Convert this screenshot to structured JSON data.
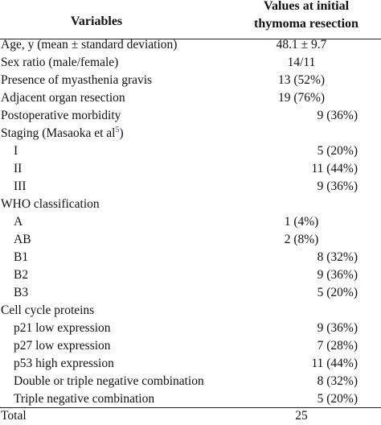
{
  "header": {
    "variables": "Variables",
    "values_line1": "Values at initial",
    "values_line2": "thymoma resection"
  },
  "rows": [
    {
      "label": "Age, y (mean ± standard deviation)",
      "value": "48.1 ± 9.7"
    },
    {
      "label": "Sex ratio (male/female)",
      "value": "14/11"
    },
    {
      "label": "Presence of myasthenia gravis",
      "value": "13 (52%)"
    },
    {
      "label": "Adjacent organ resection",
      "value": "19 (76%)"
    },
    {
      "label": "Postoperative morbidity",
      "value": "9 (36%)"
    },
    {
      "label": "Staging (Masaoka et al",
      "sup": "5",
      "label_end": ")",
      "value": ""
    },
    {
      "label": "I",
      "value": "5 (20%)"
    },
    {
      "label": "II",
      "value": "11 (44%)"
    },
    {
      "label": "III",
      "value": "9 (36%)"
    },
    {
      "label": "WHO classification",
      "value": ""
    },
    {
      "label": "A",
      "value": "1 (4%)"
    },
    {
      "label": "AB",
      "value": "2 (8%)"
    },
    {
      "label": "B1",
      "value": "8 (32%)"
    },
    {
      "label": "B2",
      "value": "9 (36%)"
    },
    {
      "label": "B3",
      "value": "5 (20%)"
    },
    {
      "label": "Cell cycle proteins",
      "value": ""
    },
    {
      "label": "p21 low expression",
      "value": "9 (36%)"
    },
    {
      "label": "p27 low expression",
      "value": "7 (28%)"
    },
    {
      "label": "p53 high expression",
      "value": "11 (44%)"
    },
    {
      "label": "Double or triple negative combination",
      "value": "8 (32%)"
    },
    {
      "label": "Triple negative combination",
      "value": "5 (20%)"
    },
    {
      "label": "Total",
      "value": "25"
    }
  ]
}
